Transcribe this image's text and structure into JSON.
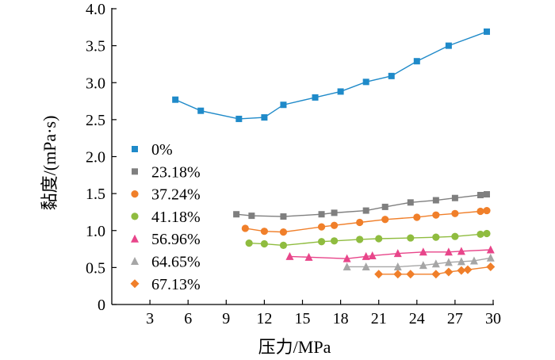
{
  "chart_data": {
    "type": "line",
    "title": "",
    "xlabel": "压力/MPa",
    "ylabel": "黏度/(mPa·s)",
    "xlim": [
      0,
      30
    ],
    "ylim": [
      0,
      4.0
    ],
    "xticks": [
      3,
      6,
      9,
      12,
      15,
      18,
      21,
      24,
      27,
      30
    ],
    "yticks": [
      0,
      0.5,
      1.0,
      1.5,
      2.0,
      2.5,
      3.0,
      3.5,
      4.0
    ],
    "xtick_labels": [
      "3",
      "6",
      "9",
      "12",
      "15",
      "18",
      "21",
      "24",
      "27",
      "30"
    ],
    "ytick_labels": [
      "0",
      "0.5",
      "1.0",
      "1.5",
      "2.0",
      "2.5",
      "3.0",
      "3.5",
      "4.0"
    ],
    "grid": false,
    "legend_position": "left-middle",
    "series": [
      {
        "name": "0%",
        "color": "#1f8ac9",
        "marker": "square",
        "x": [
          5,
          7,
          10,
          12,
          13.5,
          16,
          18,
          20,
          22,
          24,
          26.5,
          29.5
        ],
        "y": [
          2.77,
          2.62,
          2.51,
          2.53,
          2.7,
          2.8,
          2.88,
          3.01,
          3.09,
          3.29,
          3.5,
          3.69
        ]
      },
      {
        "name": "23.18%",
        "color": "#7f7f7f",
        "marker": "square",
        "x": [
          9.8,
          11,
          13.5,
          16.5,
          17.5,
          20,
          21.5,
          23.5,
          25.5,
          27,
          29,
          29.5
        ],
        "y": [
          1.22,
          1.2,
          1.19,
          1.22,
          1.24,
          1.27,
          1.32,
          1.38,
          1.41,
          1.44,
          1.48,
          1.49
        ]
      },
      {
        "name": "37.24%",
        "color": "#f07f2a",
        "marker": "circle",
        "x": [
          10.5,
          12,
          13.5,
          16.5,
          17.5,
          19.5,
          21.5,
          24,
          25.5,
          27,
          29,
          29.5
        ],
        "y": [
          1.03,
          0.99,
          0.98,
          1.05,
          1.07,
          1.11,
          1.15,
          1.18,
          1.21,
          1.23,
          1.26,
          1.27
        ]
      },
      {
        "name": "41.18%",
        "color": "#8fbc3f",
        "marker": "circle",
        "x": [
          10.8,
          12,
          13.5,
          16.5,
          17.5,
          19.5,
          21,
          23.5,
          25.5,
          27,
          29,
          29.5
        ],
        "y": [
          0.83,
          0.82,
          0.8,
          0.85,
          0.86,
          0.88,
          0.89,
          0.9,
          0.91,
          0.92,
          0.95,
          0.96
        ]
      },
      {
        "name": "56.96%",
        "color": "#e8458a",
        "marker": "triangle",
        "x": [
          14,
          15.5,
          18.5,
          20,
          20.5,
          22.5,
          24.5,
          26.5,
          27.5,
          29.8
        ],
        "y": [
          0.65,
          0.64,
          0.62,
          0.65,
          0.66,
          0.69,
          0.71,
          0.71,
          0.72,
          0.74
        ]
      },
      {
        "name": "64.65%",
        "color": "#a6a6a6",
        "marker": "triangle",
        "x": [
          18.5,
          20,
          22.5,
          24.5,
          25.5,
          26.5,
          27.5,
          28.5,
          29.8
        ],
        "y": [
          0.51,
          0.51,
          0.51,
          0.53,
          0.55,
          0.57,
          0.58,
          0.59,
          0.63
        ]
      },
      {
        "name": "67.13%",
        "color": "#f07f2a",
        "marker": "diamond",
        "x": [
          21,
          22.5,
          23.5,
          25.5,
          26.5,
          27.5,
          28,
          29.8
        ],
        "y": [
          0.41,
          0.41,
          0.41,
          0.41,
          0.44,
          0.46,
          0.47,
          0.51
        ]
      }
    ]
  }
}
